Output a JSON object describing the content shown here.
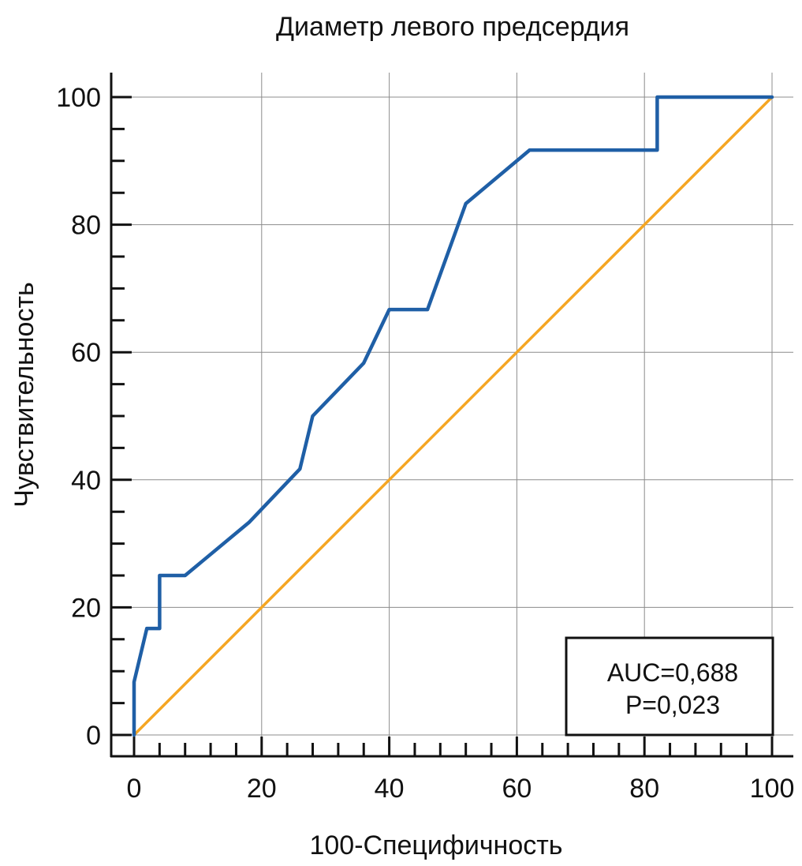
{
  "chart_data": {
    "type": "line",
    "title": "Диаметр левого предсердия",
    "xlabel": "100-Специфичность",
    "ylabel": "Чувствительность",
    "xlim": [
      0,
      100
    ],
    "ylim": [
      0,
      100
    ],
    "x_ticks": [
      "0",
      "20",
      "40",
      "60",
      "80",
      "100"
    ],
    "y_ticks": [
      "0",
      "20",
      "40",
      "60",
      "80",
      "100"
    ],
    "grid": true,
    "series": [
      {
        "color": "#1f5fa6",
        "points": [
          [
            0,
            0
          ],
          [
            0,
            8.3
          ],
          [
            2,
            16.7
          ],
          [
            4,
            16.7
          ],
          [
            4,
            25
          ],
          [
            8,
            25
          ],
          [
            18,
            33.3
          ],
          [
            26,
            41.7
          ],
          [
            28,
            50
          ],
          [
            36,
            58.3
          ],
          [
            40,
            66.7
          ],
          [
            46,
            66.7
          ],
          [
            52,
            83.3
          ],
          [
            62,
            91.7
          ],
          [
            82,
            91.7
          ],
          [
            82,
            100
          ],
          [
            100,
            100
          ]
        ]
      },
      {
        "color": "#f5a623",
        "points": [
          [
            0,
            0
          ],
          [
            100,
            100
          ]
        ]
      }
    ],
    "annotations": {
      "auc": "AUC=0,688",
      "p": "P=0,023"
    }
  }
}
